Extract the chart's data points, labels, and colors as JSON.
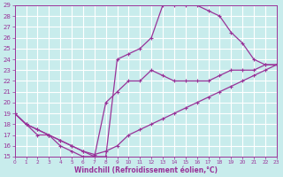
{
  "xlabel": "Windchill (Refroidissement éolien,°C)",
  "bg_color": "#c8ecec",
  "grid_color": "#ffffff",
  "line_color": "#993399",
  "xlim": [
    0,
    23
  ],
  "ylim": [
    15,
    29
  ],
  "xticks": [
    0,
    1,
    2,
    3,
    4,
    5,
    6,
    7,
    8,
    9,
    10,
    11,
    12,
    13,
    14,
    15,
    16,
    17,
    18,
    19,
    20,
    21,
    22,
    23
  ],
  "yticks": [
    15,
    16,
    17,
    18,
    19,
    20,
    21,
    22,
    23,
    24,
    25,
    26,
    27,
    28,
    29
  ],
  "line_upper_x": [
    0,
    1,
    2,
    3,
    4,
    5,
    6,
    7,
    8,
    9,
    10,
    11,
    12,
    13,
    14,
    15,
    16,
    17,
    18,
    19,
    20,
    21,
    22,
    23
  ],
  "line_upper_y": [
    19,
    18,
    17,
    17,
    16,
    15.5,
    15,
    15,
    15,
    24,
    24.5,
    25,
    26,
    29,
    29,
    29,
    29,
    28.5,
    28,
    26.5,
    25.5,
    24,
    23.5,
    23.5
  ],
  "line_mid_x": [
    0,
    1,
    2,
    3,
    4,
    5,
    6,
    7,
    8,
    9,
    10,
    11,
    12,
    13,
    14,
    15,
    16,
    17,
    18,
    19,
    20,
    21,
    22,
    23
  ],
  "line_mid_y": [
    19,
    18,
    17.5,
    17,
    16.5,
    16,
    15.5,
    15,
    20,
    21,
    22,
    22,
    23,
    22.5,
    22,
    22,
    22,
    22,
    22.5,
    23,
    23,
    23,
    23.5,
    23.5
  ],
  "line_diag_x": [
    0,
    1,
    2,
    3,
    4,
    5,
    6,
    7,
    8,
    9,
    10,
    11,
    12,
    13,
    14,
    15,
    16,
    17,
    18,
    19,
    20,
    21,
    22,
    23
  ],
  "line_diag_y": [
    19,
    18,
    17.5,
    17,
    16.5,
    16,
    15.5,
    15.2,
    15.5,
    16,
    17,
    17.5,
    18,
    18.5,
    19,
    19.5,
    20,
    20.5,
    21,
    21.5,
    22,
    22.5,
    23,
    23.5
  ]
}
